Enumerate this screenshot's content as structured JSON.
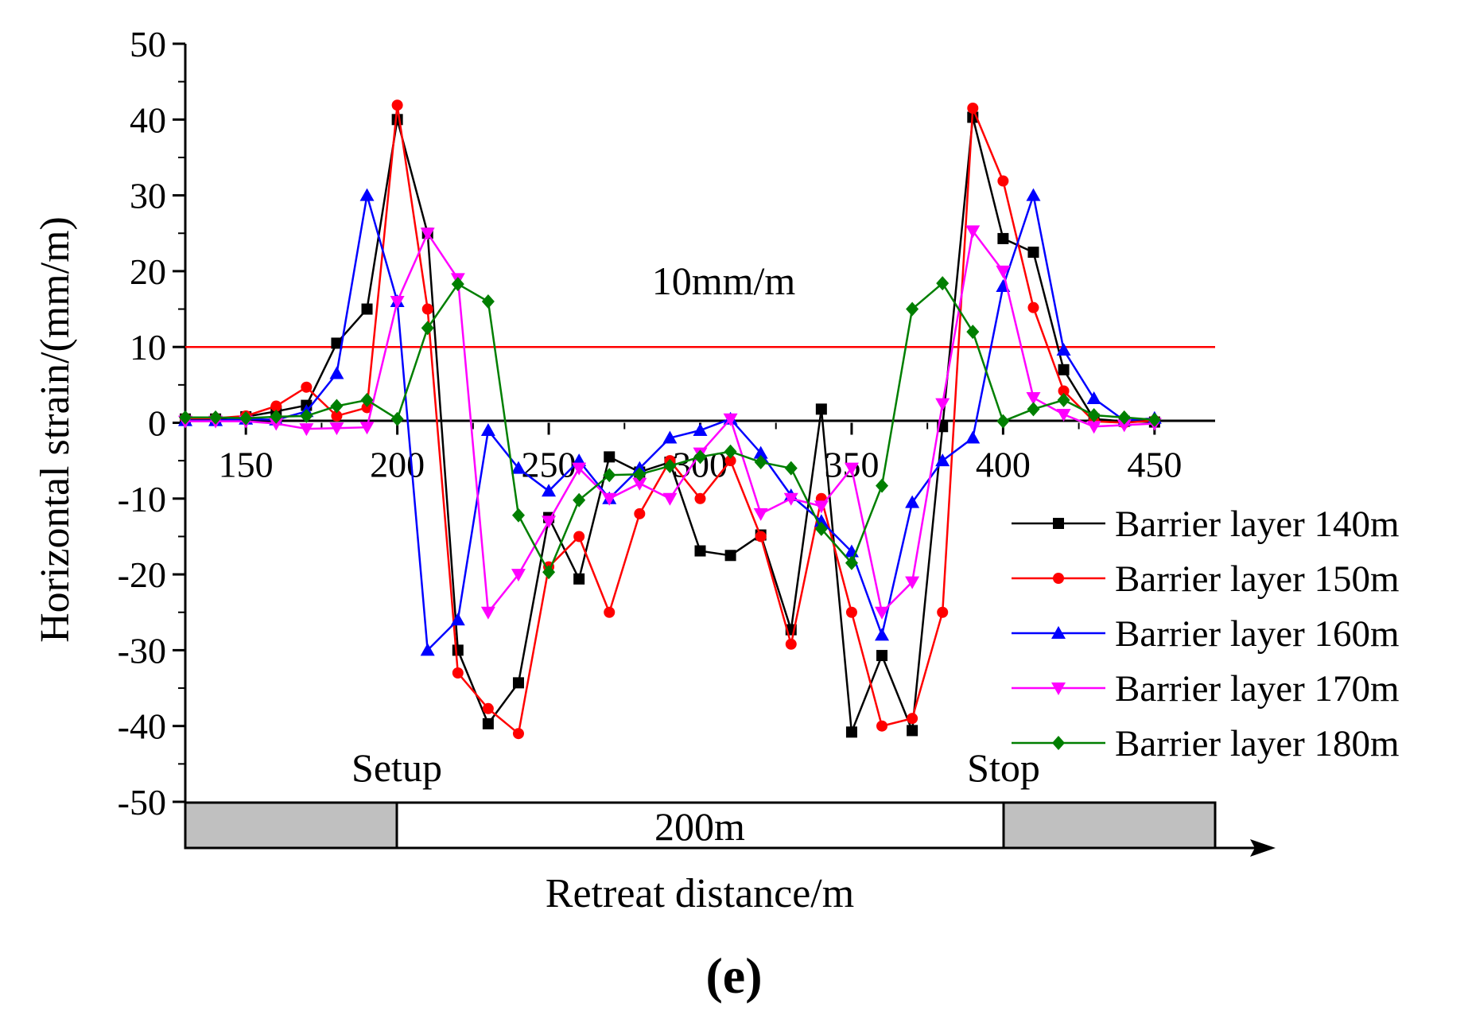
{
  "figure_label": "(e)",
  "chart_data": {
    "type": "line",
    "title": "",
    "xlabel": "Retreat distance/m",
    "ylabel": "Horizontal strain/(mm/m)",
    "xlim": [
      130,
      470
    ],
    "ylim": [
      -50,
      50
    ],
    "x_ticks": [
      150,
      200,
      250,
      300,
      350,
      400,
      450
    ],
    "y_ticks": [
      50,
      40,
      30,
      20,
      10,
      0,
      -10,
      -20,
      -30,
      -40,
      -50
    ],
    "threshold": {
      "value": 10,
      "label": "10mm/m",
      "color": "#ff0000"
    },
    "x": [
      130,
      140,
      150,
      160,
      170,
      180,
      190,
      200,
      210,
      220,
      230,
      240,
      250,
      260,
      270,
      280,
      290,
      300,
      310,
      320,
      330,
      340,
      350,
      360,
      370,
      380,
      390,
      400,
      410,
      420,
      430,
      440,
      450
    ],
    "series": [
      {
        "name": "Barrier layer 140m",
        "color": "#000000",
        "marker": "square",
        "values": [
          0.5,
          0.5,
          0.8,
          1.5,
          2.3,
          10.5,
          15,
          40,
          25,
          -30,
          -39.7,
          -34.3,
          -12.5,
          -20.6,
          -4.5,
          -6.5,
          -5.2,
          -16.9,
          -17.5,
          -14.8,
          -27.3,
          1.8,
          -40.8,
          -30.7,
          -40.6,
          -0.5,
          40.3,
          24.3,
          22.5,
          7,
          0.5,
          0.2,
          0.1
        ]
      },
      {
        "name": "Barrier layer 150m",
        "color": "#ff0000",
        "marker": "circle",
        "values": [
          0.6,
          0.6,
          0.9,
          2.2,
          4.7,
          0.9,
          2,
          41.9,
          15,
          -33,
          -37.7,
          -41,
          -19,
          -15,
          -25,
          -12,
          -5,
          -10,
          -5,
          -15,
          -29.2,
          -10,
          -25,
          -40,
          -39,
          -25,
          41.5,
          31.9,
          15.2,
          4.2,
          0.2,
          0,
          0.3
        ]
      },
      {
        "name": "Barrier layer 160m",
        "color": "#0000ff",
        "marker": "triangle-up",
        "values": [
          0.3,
          0.3,
          0.5,
          0.4,
          1.5,
          6.5,
          30,
          16,
          -30,
          -26,
          -1,
          -6,
          -9,
          -5,
          -10,
          -6,
          -2,
          -1,
          0.5,
          -4,
          -9.6,
          -13,
          -17,
          -28,
          -10.5,
          -5,
          -2,
          18,
          30,
          9.6,
          3.2,
          0.3,
          0.6
        ]
      },
      {
        "name": "Barrier layer 170m",
        "color": "#ff00ff",
        "marker": "triangle-down",
        "values": [
          0.2,
          0.2,
          0.2,
          -0.1,
          -0.8,
          -0.7,
          -0.6,
          16,
          25,
          19,
          -25,
          -20,
          -13,
          -6,
          -10,
          -8,
          -10,
          -4,
          0.5,
          -12,
          -10,
          -11,
          -6,
          -25,
          -21,
          2.5,
          25.3,
          20,
          3.3,
          1.1,
          -0.5,
          -0.3,
          -0.1
        ]
      },
      {
        "name": "Barrier layer 180m",
        "color": "#007f00",
        "marker": "diamond",
        "values": [
          0.7,
          0.7,
          0.6,
          0.8,
          0.9,
          2.2,
          3,
          0.5,
          12.5,
          18.3,
          16,
          -12.2,
          -19.7,
          -10.2,
          -6.9,
          -6.8,
          -5.7,
          -4.5,
          -3.8,
          -5.2,
          -6,
          -14,
          -18.5,
          -8.3,
          15,
          18.4,
          12,
          0.2,
          1.8,
          3,
          1,
          0.7,
          0.4
        ]
      }
    ],
    "annotations": [
      {
        "id": "setup",
        "text": "Setup",
        "x": 200
      },
      {
        "id": "stop",
        "text": "Stop",
        "x": 400
      },
      {
        "id": "span",
        "text": "200m"
      }
    ],
    "legend_position": "bottom-right"
  }
}
